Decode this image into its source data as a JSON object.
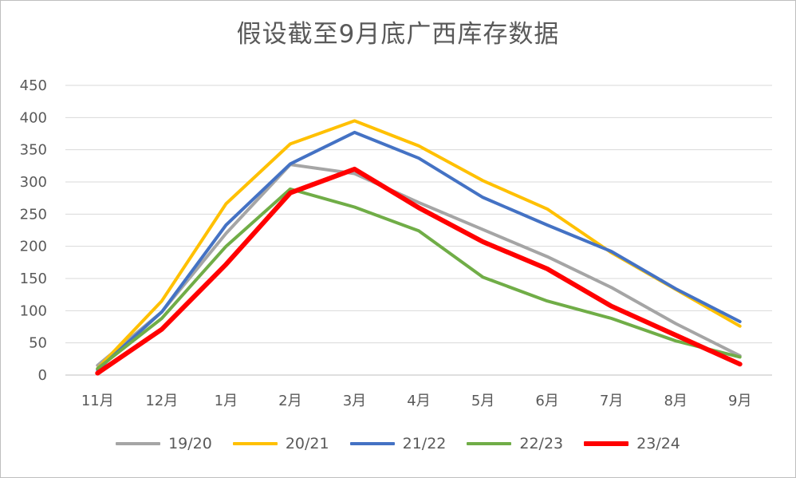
{
  "chart_data": {
    "type": "line",
    "title": "假设截至9月底广西库存数据",
    "categories": [
      "11月",
      "12月",
      "1月",
      "2月",
      "3月",
      "4月",
      "5月",
      "6月",
      "7月",
      "8月",
      "9月"
    ],
    "ylim": [
      0,
      450
    ],
    "yticks": [
      0,
      50,
      100,
      150,
      200,
      250,
      300,
      350,
      400,
      450
    ],
    "grid": true,
    "legend_position": "bottom",
    "series": [
      {
        "name": "19/20",
        "color": "#a5a5a5",
        "values": [
          15,
          98,
          220,
          327,
          313,
          268,
          226,
          184,
          136,
          80,
          30
        ]
      },
      {
        "name": "20/21",
        "color": "#ffc000",
        "values": [
          10,
          115,
          266,
          359,
          395,
          356,
          302,
          258,
          190,
          133,
          76
        ]
      },
      {
        "name": "21/22",
        "color": "#4472c4",
        "values": [
          8,
          98,
          233,
          328,
          377,
          337,
          276,
          233,
          192,
          134,
          83
        ]
      },
      {
        "name": "22/23",
        "color": "#70ad47",
        "values": [
          10,
          88,
          200,
          289,
          261,
          224,
          152,
          115,
          88,
          53,
          28
        ]
      },
      {
        "name": "23/24",
        "color": "#ff0000",
        "values": [
          3,
          71,
          172,
          283,
          320,
          260,
          207,
          165,
          107,
          62,
          17
        ]
      }
    ]
  }
}
